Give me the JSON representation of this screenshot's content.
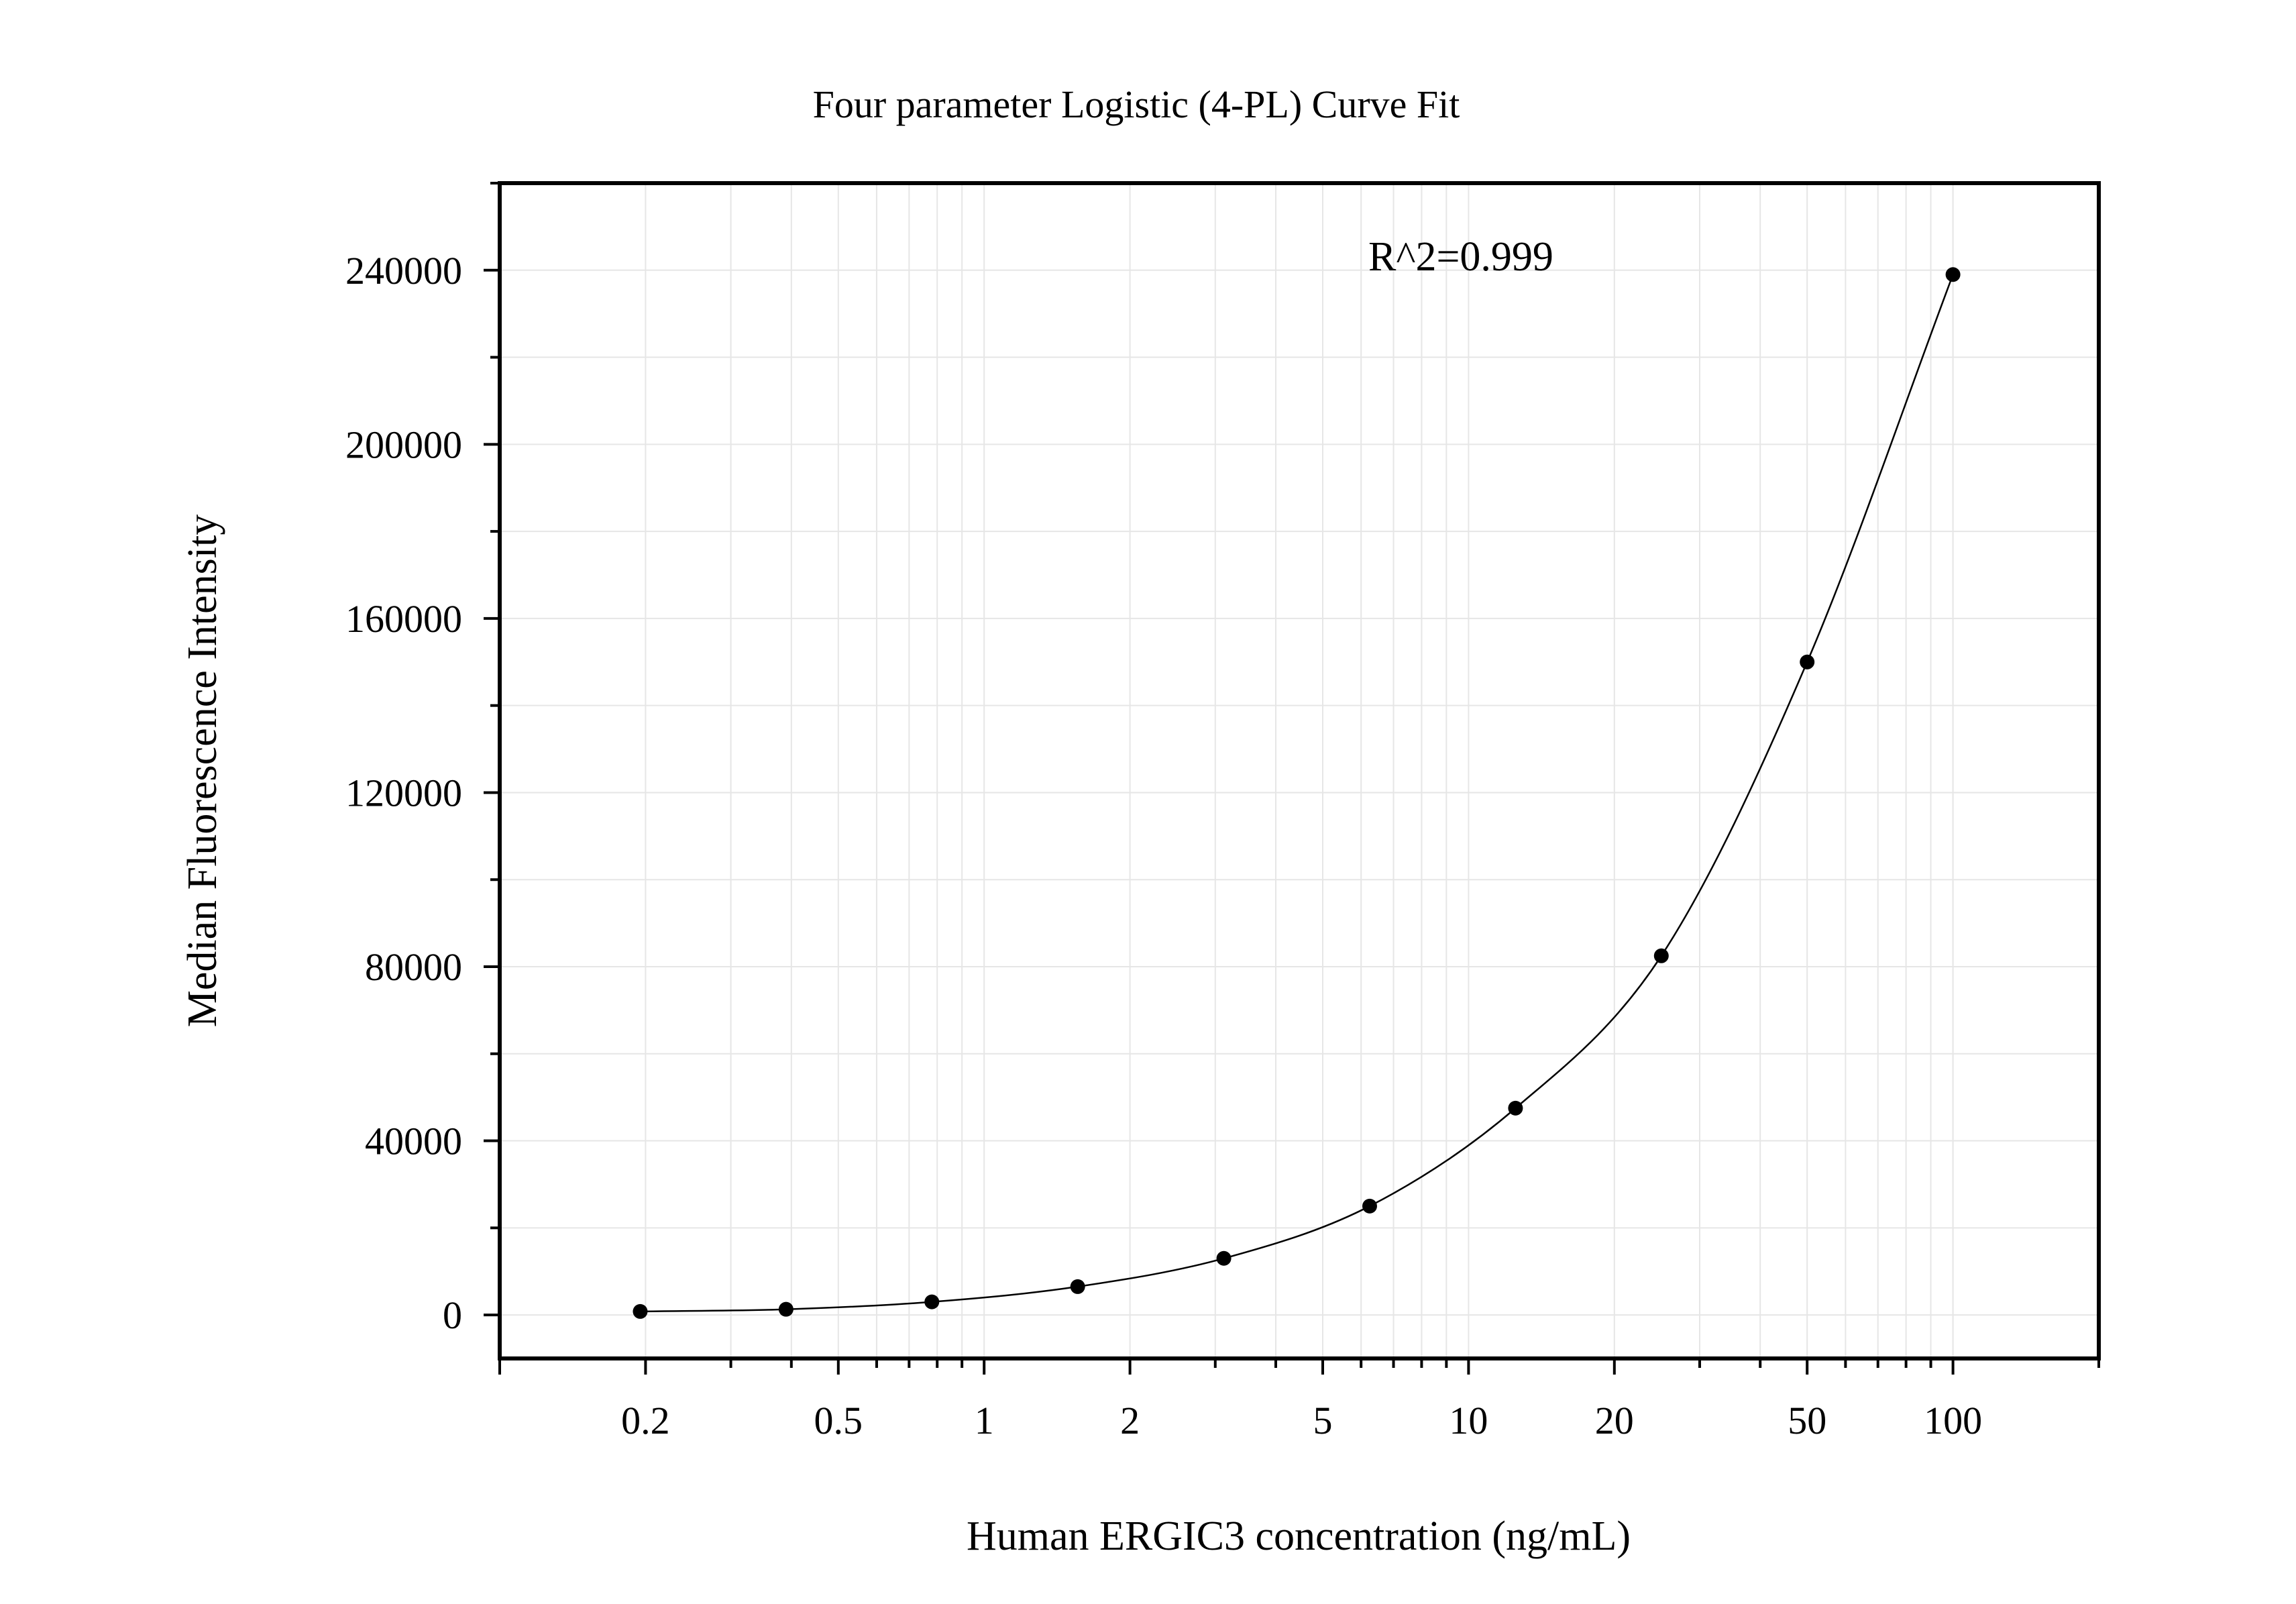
{
  "chart_data": {
    "type": "scatter",
    "title": "Four parameter Logistic (4-PL) Curve Fit",
    "xlabel": "Human ERGIC3 concentration (ng/mL)",
    "ylabel": "Median Fluorescence Intensity",
    "annotation": "R^2=0.999",
    "x_scale": "log",
    "xlim": [
      0.1,
      200
    ],
    "ylim": [
      -10000,
      260000
    ],
    "x_ticks": [
      0.2,
      0.5,
      1,
      2,
      5,
      10,
      20,
      50,
      100
    ],
    "x_tick_labels": [
      "0.2",
      "0.5",
      "1",
      "2",
      "5",
      "10",
      "20",
      "50",
      "100"
    ],
    "y_ticks": [
      0,
      40000,
      80000,
      120000,
      160000,
      200000,
      240000
    ],
    "y_tick_labels": [
      "0",
      "40000",
      "80000",
      "120000",
      "160000",
      "200000",
      "240000"
    ],
    "grid": true,
    "series": [
      {
        "x": [
          0.195,
          0.39,
          0.78,
          1.56,
          3.125,
          6.25,
          12.5,
          25,
          50,
          100
        ],
        "y": [
          800,
          1300,
          3000,
          6500,
          13000,
          25000,
          47500,
          82500,
          150000,
          239000
        ]
      }
    ],
    "fit_curve": "4-PL",
    "colors": {
      "points": "#000000",
      "curve": "#000000",
      "grid": "#e6e6e6",
      "frame": "#000000"
    }
  }
}
